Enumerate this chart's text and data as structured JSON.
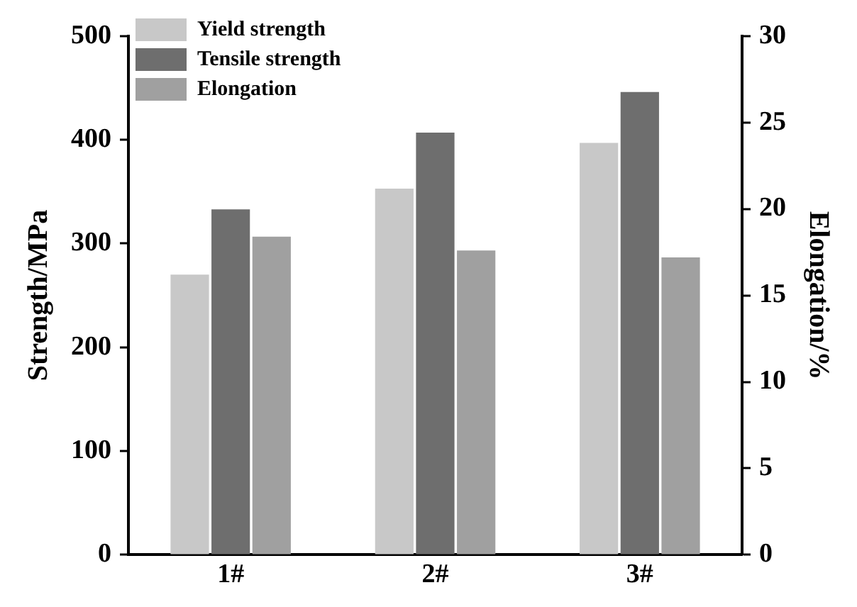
{
  "chart_data": {
    "type": "bar",
    "ylabel": "Strength/MPa",
    "y2label": "Elongation/%",
    "categories": [
      "1#",
      "2#",
      "3#"
    ],
    "series": [
      {
        "name": "Yield strength",
        "color": "#c8c8c8",
        "values": [
          270,
          353,
          397
        ]
      },
      {
        "name": "Tensile strength",
        "color": "#6e6e6e",
        "values": [
          333,
          407,
          446
        ]
      },
      {
        "name": "Elongation",
        "color": "#a0a0a0",
        "axis": "y2",
        "values": [
          18.4,
          17.6,
          17.2
        ]
      }
    ],
    "ylim": [
      0,
      500
    ],
    "yticks": [
      0,
      100,
      200,
      300,
      400,
      500
    ],
    "y2lim": [
      0,
      30
    ],
    "y2ticks": [
      0,
      5,
      10,
      15,
      20,
      25,
      30
    ],
    "grid": false,
    "legend": "top left"
  }
}
